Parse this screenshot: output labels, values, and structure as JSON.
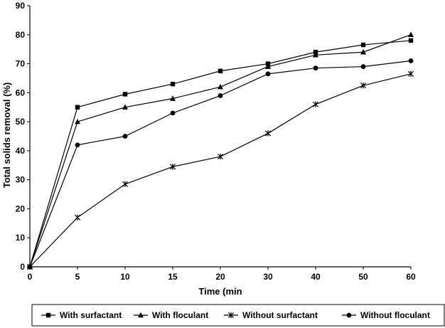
{
  "chart_data": {
    "type": "line",
    "title": "",
    "xlabel": "Time (min",
    "ylabel": "Total solids removal (%)",
    "x": [
      0,
      5,
      10,
      15,
      20,
      30,
      40,
      50,
      60
    ],
    "x_tick_labels": [
      "0",
      "5",
      "10",
      "15",
      "20",
      "30",
      "40",
      "50",
      "60"
    ],
    "y_ticks": [
      0,
      10,
      20,
      30,
      40,
      50,
      60,
      70,
      80,
      90
    ],
    "ylim": [
      0,
      90
    ],
    "grid": false,
    "legend_position": "bottom",
    "series": [
      {
        "name": "With surfactant",
        "marker": "square",
        "values": [
          0,
          55,
          59.5,
          63,
          67.5,
          70,
          74,
          76.5,
          78
        ]
      },
      {
        "name": "With floculant",
        "marker": "triangle",
        "values": [
          0,
          50,
          55,
          58,
          62,
          69,
          73,
          74,
          80
        ]
      },
      {
        "name": "Without surfactant",
        "marker": "asterisk",
        "values": [
          0,
          17,
          28.5,
          34.5,
          38,
          46,
          56,
          62.5,
          66.5
        ]
      },
      {
        "name": "Without floculant",
        "marker": "circle",
        "values": [
          0,
          42,
          45,
          53,
          59,
          66.5,
          68.5,
          69,
          71
        ]
      }
    ]
  }
}
